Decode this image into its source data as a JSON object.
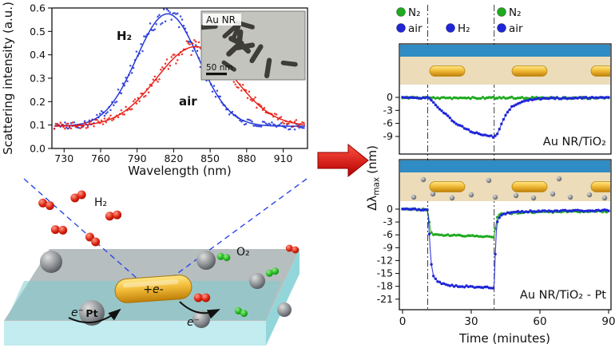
{
  "figure": {
    "spectrum": {
      "ylabel": "Scattering intensity (a.u.)",
      "xlabel": "Wavelength (nm)",
      "h2_series_label": "H₂",
      "air_series_label": "air",
      "inset": {
        "label": "Au NR",
        "scalebar_label": "50 nm"
      }
    },
    "schematic": {
      "h2_label": "H₂",
      "o2_label": "O₂",
      "pt_label": "Pt",
      "rod_charge_label": "+e-",
      "electron_left_label": "e⁻",
      "electron_right_label": "e⁻"
    },
    "kinetics": {
      "ylabel_prefix": "Δλ",
      "ylabel_sub": "max",
      "ylabel_suffix": "(nm)",
      "xlabel": "Time (minutes)",
      "panel1_label": "Au NR/TiO₂",
      "panel2_label": "Au NR/TiO₂ - Pt",
      "legend": {
        "row1": [
          {
            "label": "N₂",
            "color": "#1faa1f"
          },
          {
            "label": "N₂",
            "color": "#1faa1f"
          }
        ],
        "row2": [
          {
            "label": "air",
            "color": "#2026d8"
          },
          {
            "label": "H₂",
            "color": "#2026d8"
          },
          {
            "label": "air",
            "color": "#2026d8"
          }
        ]
      }
    },
    "colors": {
      "spectrum_h2_blue": "#1b2fd6",
      "spectrum_air_red": "#e8150d",
      "kinetics_green": "#1faa1f",
      "kinetics_blue": "#2026d8",
      "tio2_film_blue": "#2f8cc4",
      "substrate_beige": "#ecdcba",
      "gold_rod": "#eaa921",
      "transition_arrow_red": "#e01010",
      "slab_gray": "#b2babc",
      "teal_surface": "#7fccd0"
    }
  },
  "chart_data": [
    {
      "type": "line",
      "title": "Single Au nanorod scattering spectra",
      "xlabel": "Wavelength (nm)",
      "ylabel": "Scattering intensity (a.u.)",
      "xlim": [
        720,
        930
      ],
      "ylim": [
        0,
        0.6
      ],
      "xticks": [
        730,
        760,
        790,
        820,
        850,
        880,
        910
      ],
      "yticks": [
        0.0,
        0.1,
        0.2,
        0.3,
        0.4,
        0.5,
        0.6
      ],
      "grid": false,
      "series": [
        {
          "name": "H₂",
          "color": "#1b2fd6",
          "profile": "gaussian",
          "peak_nm": 815,
          "peak_intensity": 0.575,
          "baseline": 0.095,
          "sigma_nm": 36,
          "fwhm_nm": 60
        },
        {
          "name": "air",
          "color": "#e8150d",
          "profile": "gaussian",
          "peak_nm": 838,
          "peak_intensity": 0.435,
          "baseline": 0.095,
          "sigma_nm": 45,
          "fwhm_nm": 75
        }
      ],
      "inset": {
        "label": "Au NR",
        "scalebar": "50 nm"
      }
    },
    {
      "type": "line",
      "title": "Plasmon shift kinetics",
      "xlabel": "Time (minutes)",
      "ylabel": "Δλmax (nm)",
      "xlim": [
        0,
        90
      ],
      "xticks": [
        0,
        30,
        60,
        90
      ],
      "event_times_min": [
        11,
        40
      ],
      "legend_position": "top",
      "panels": [
        {
          "label": "Au NR/TiO₂",
          "ylim": [
            -13,
            2
          ],
          "yticks": [
            0,
            -3,
            -6,
            -9
          ],
          "series": [
            {
              "name": "N₂",
              "gas_sequence": "N₂ → H₂ → N₂",
              "color": "#1faa1f",
              "points": [
                [
                  0,
                  -0.05
                ],
                [
                  20,
                  -0.15
                ],
                [
                  45,
                  -0.1
                ],
                [
                  70,
                  -0.15
                ],
                [
                  90,
                  -0.1
                ]
              ]
            },
            {
              "name": "air",
              "gas_sequence": "air → H₂ → air",
              "color": "#2026d8",
              "points": [
                [
                  0,
                  -0.1
                ],
                [
                  11,
                  -0.1
                ],
                [
                  12,
                  -0.5
                ],
                [
                  14,
                  -1.4
                ],
                [
                  17,
                  -3
                ],
                [
                  20,
                  -4.5
                ],
                [
                  24,
                  -6.2
                ],
                [
                  28,
                  -7.4
                ],
                [
                  32,
                  -8.2
                ],
                [
                  36,
                  -8.7
                ],
                [
                  40,
                  -9.1
                ],
                [
                  41,
                  -8.8
                ],
                [
                  42.5,
                  -7
                ],
                [
                  44,
                  -5
                ],
                [
                  46,
                  -3.2
                ],
                [
                  48,
                  -2.1
                ],
                [
                  51,
                  -1.2
                ],
                [
                  55,
                  -0.6
                ],
                [
                  60,
                  -0.3
                ],
                [
                  70,
                  -0.15
                ],
                [
                  90,
                  -0.1
                ]
              ]
            }
          ]
        },
        {
          "label": "Au NR/TiO₂ - Pt",
          "ylim": [
            -23.5,
            2
          ],
          "yticks": [
            0,
            -3,
            -6,
            -9,
            -12,
            -15,
            -18,
            -21
          ],
          "series": [
            {
              "name": "N₂",
              "gas_sequence": "N₂ → H₂ → N₂",
              "color": "#1faa1f",
              "points": [
                [
                  0,
                  -0.05
                ],
                [
                  11,
                  -0.1
                ],
                [
                  11.6,
                  -2.5
                ],
                [
                  12.4,
                  -5.4
                ],
                [
                  13.5,
                  -5.9
                ],
                [
                  18,
                  -6.1
                ],
                [
                  25,
                  -6.2
                ],
                [
                  32,
                  -6.3
                ],
                [
                  40,
                  -6.4
                ],
                [
                  40.6,
                  -4
                ],
                [
                  41.4,
                  -2
                ],
                [
                  42.5,
                  -1.3
                ],
                [
                  45,
                  -1
                ],
                [
                  50,
                  -0.85
                ],
                [
                  58,
                  -0.7
                ],
                [
                  70,
                  -0.55
                ],
                [
                  90,
                  -0.5
                ]
              ]
            },
            {
              "name": "air",
              "gas_sequence": "air → H₂ → air",
              "color": "#2026d8",
              "points": [
                [
                  0,
                  -0.05
                ],
                [
                  11,
                  -0.1
                ],
                [
                  11.5,
                  -4
                ],
                [
                  12,
                  -9
                ],
                [
                  12.7,
                  -13.5
                ],
                [
                  13.5,
                  -15.5
                ],
                [
                  15,
                  -16.8
                ],
                [
                  17,
                  -17.4
                ],
                [
                  20,
                  -17.8
                ],
                [
                  25,
                  -18
                ],
                [
                  30,
                  -18.1
                ],
                [
                  35,
                  -18.2
                ],
                [
                  40,
                  -18.3
                ],
                [
                  40.4,
                  -12
                ],
                [
                  40.8,
                  -6
                ],
                [
                  41.4,
                  -3
                ],
                [
                  42.5,
                  -1.7
                ],
                [
                  44,
                  -1.1
                ],
                [
                  47,
                  -0.8
                ],
                [
                  52,
                  -0.6
                ],
                [
                  60,
                  -0.45
                ],
                [
                  75,
                  -0.35
                ],
                [
                  90,
                  -0.3
                ]
              ]
            }
          ]
        }
      ]
    }
  ]
}
